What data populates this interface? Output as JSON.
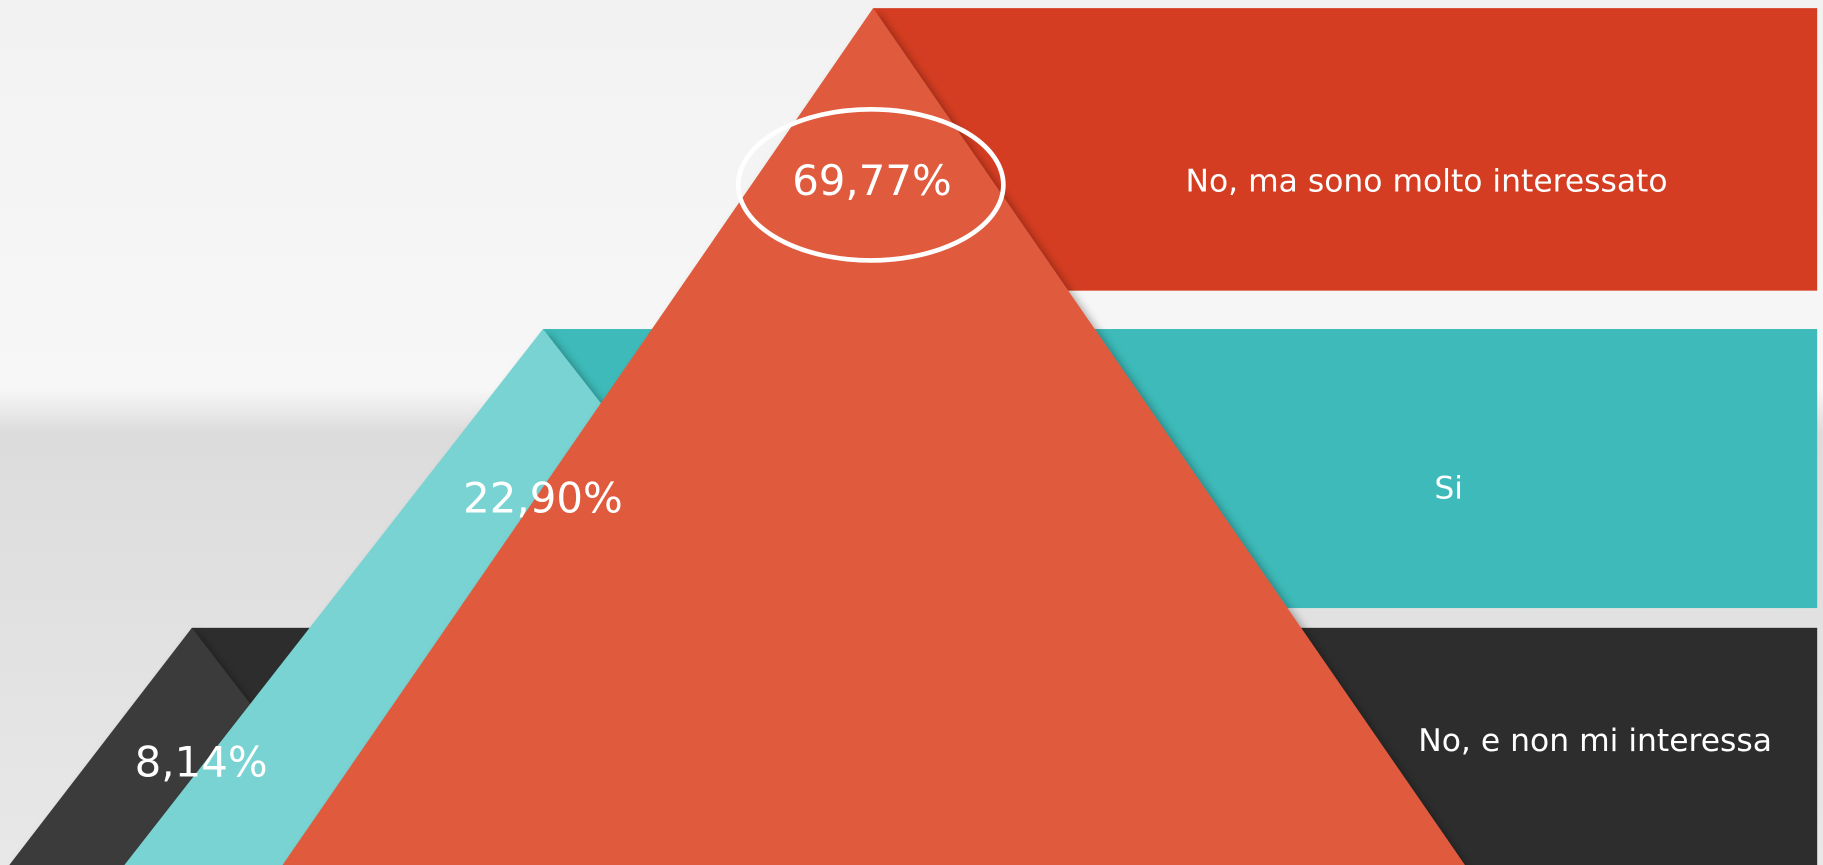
{
  "items": [
    {
      "percent": "69,77%",
      "label": "No, ma sono molto interessato"
    },
    {
      "percent": "22,90%",
      "label": "Si"
    },
    {
      "percent": "8,14%",
      "label": "No, e non mi interessa"
    }
  ]
}
